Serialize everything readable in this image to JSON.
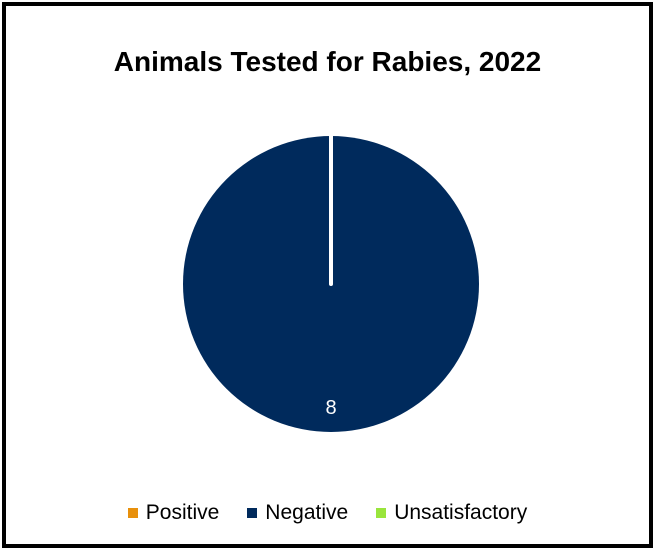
{
  "chart_data": {
    "type": "pie",
    "title": "Animals Tested for Rabies, 2022",
    "categories": [
      "Positive",
      "Negative",
      "Unsatisfactory"
    ],
    "values": [
      0,
      8,
      0
    ],
    "data_labels": [
      "",
      "8",
      ""
    ],
    "colors": [
      "#E8900C",
      "#002A5C",
      "#99E53C"
    ],
    "legend_position": "bottom"
  }
}
